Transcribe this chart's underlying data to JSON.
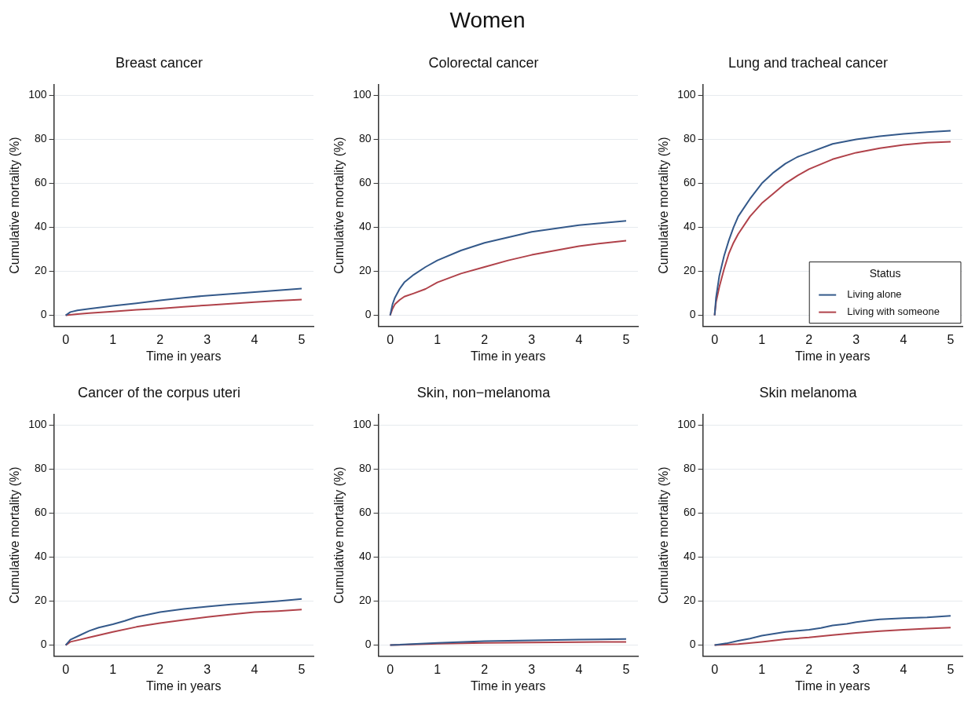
{
  "chart_data": [
    {
      "type": "other",
      "title": "Women"
    },
    {
      "type": "line",
      "title": "Breast cancer",
      "xlabel": "Time in years",
      "ylabel": "Cumulative mortality (%)",
      "xlim": [
        -0.25,
        5.25
      ],
      "xticks": [
        0,
        1,
        2,
        3,
        4,
        5
      ],
      "ylim": [
        -5,
        105
      ],
      "yticks": [
        0,
        20,
        40,
        60,
        80,
        100
      ],
      "grid": "y",
      "legend": false,
      "series": [
        {
          "color": "#34598a",
          "x": [
            0,
            0.1,
            0.25,
            0.5,
            1,
            1.5,
            2,
            2.5,
            3,
            3.5,
            4,
            4.5,
            5
          ],
          "values": [
            0,
            1.5,
            2.3,
            3,
            4.3,
            5.5,
            6.8,
            8,
            9,
            9.8,
            10.6,
            11.4,
            12.2
          ]
        },
        {
          "color": "#b0424a",
          "x": [
            0,
            0.25,
            0.5,
            1,
            1.5,
            2,
            2.5,
            3,
            3.5,
            4,
            4.5,
            5
          ],
          "values": [
            0,
            0.6,
            1,
            1.7,
            2.5,
            3.1,
            3.9,
            4.6,
            5.3,
            6,
            6.6,
            7.2
          ]
        }
      ]
    },
    {
      "type": "line",
      "title": "Colorectal cancer",
      "xlabel": "Time in years",
      "ylabel": "Cumulative mortality (%)",
      "xlim": [
        -0.25,
        5.25
      ],
      "xticks": [
        0,
        1,
        2,
        3,
        4,
        5
      ],
      "ylim": [
        -5,
        105
      ],
      "yticks": [
        0,
        20,
        40,
        60,
        80,
        100
      ],
      "grid": "y",
      "legend": false,
      "series": [
        {
          "color": "#34598a",
          "x": [
            0,
            0.05,
            0.1,
            0.2,
            0.3,
            0.5,
            0.75,
            1,
            1.5,
            2,
            2.5,
            3,
            3.5,
            4,
            4.5,
            5
          ],
          "values": [
            0,
            5,
            8,
            12,
            15,
            18.5,
            22,
            25,
            29.5,
            33,
            35.5,
            38,
            39.5,
            41,
            42,
            43
          ]
        },
        {
          "color": "#b0424a",
          "x": [
            0,
            0.05,
            0.1,
            0.2,
            0.3,
            0.5,
            0.75,
            1,
            1.5,
            2,
            2.5,
            3,
            3.5,
            4,
            4.5,
            5
          ],
          "values": [
            0,
            3,
            5,
            7,
            8.5,
            10,
            12,
            15,
            19,
            22,
            25,
            27.5,
            29.5,
            31.5,
            32.8,
            34
          ]
        }
      ]
    },
    {
      "type": "line",
      "title": "Lung and tracheal cancer",
      "xlabel": "Time in years",
      "ylabel": "Cumulative mortality (%)",
      "xlim": [
        -0.25,
        5.25
      ],
      "xticks": [
        0,
        1,
        2,
        3,
        4,
        5
      ],
      "ylim": [
        -5,
        105
      ],
      "yticks": [
        0,
        20,
        40,
        60,
        80,
        100
      ],
      "grid": "y",
      "legend": "bottom right",
      "legend_title": "Status",
      "series": [
        {
          "name": "Living alone",
          "color": "#34598a",
          "x": [
            0,
            0.03,
            0.1,
            0.2,
            0.3,
            0.4,
            0.5,
            0.75,
            1,
            1.25,
            1.5,
            1.75,
            2,
            2.5,
            3,
            3.5,
            4,
            4.5,
            5
          ],
          "values": [
            0,
            8,
            18,
            27,
            34,
            40,
            45,
            53,
            60,
            65,
            69,
            72,
            74,
            78,
            80,
            81.5,
            82.5,
            83.3,
            84
          ]
        },
        {
          "name": "Living with someone",
          "color": "#b0424a",
          "x": [
            0,
            0.03,
            0.1,
            0.2,
            0.3,
            0.4,
            0.5,
            0.75,
            1,
            1.25,
            1.5,
            1.75,
            2,
            2.5,
            3,
            3.5,
            4,
            4.5,
            5
          ],
          "values": [
            0,
            6,
            13,
            21,
            28,
            33,
            37,
            45,
            51,
            55.5,
            60,
            63.5,
            66.5,
            71,
            74,
            76,
            77.5,
            78.5,
            79
          ]
        }
      ]
    },
    {
      "type": "line",
      "title": "Cancer of the corpus uteri",
      "xlabel": "Time in years",
      "ylabel": "Cumulative mortality (%)",
      "xlim": [
        -0.25,
        5.25
      ],
      "xticks": [
        0,
        1,
        2,
        3,
        4,
        5
      ],
      "ylim": [
        -5,
        105
      ],
      "yticks": [
        0,
        20,
        40,
        60,
        80,
        100
      ],
      "grid": "y",
      "legend": false,
      "series": [
        {
          "color": "#34598a",
          "x": [
            0,
            0.1,
            0.3,
            0.5,
            0.7,
            1,
            1.25,
            1.5,
            2,
            2.5,
            3,
            3.5,
            4,
            4.5,
            5
          ],
          "values": [
            0,
            2.5,
            4.5,
            6.5,
            8,
            9.5,
            11,
            12.8,
            15,
            16.5,
            17.5,
            18.5,
            19.2,
            20,
            21
          ]
        },
        {
          "color": "#b0424a",
          "x": [
            0,
            0.1,
            0.3,
            0.5,
            0.75,
            1,
            1.5,
            2,
            2.5,
            3,
            3.5,
            4,
            4.5,
            5
          ],
          "values": [
            0,
            1.5,
            2.5,
            3.5,
            4.8,
            6,
            8.3,
            10,
            11.5,
            12.8,
            14,
            15,
            15.5,
            16.2
          ]
        }
      ]
    },
    {
      "type": "line",
      "title": "Skin, non−melanoma",
      "xlabel": "Time in years",
      "ylabel": "Cumulative mortality (%)",
      "xlim": [
        -0.25,
        5.25
      ],
      "xticks": [
        0,
        1,
        2,
        3,
        4,
        5
      ],
      "ylim": [
        -5,
        105
      ],
      "yticks": [
        0,
        20,
        40,
        60,
        80,
        100
      ],
      "grid": "y",
      "legend": false,
      "series": [
        {
          "color": "#34598a",
          "x": [
            0,
            1,
            2,
            3,
            4,
            5
          ],
          "values": [
            0,
            1,
            1.8,
            2.2,
            2.5,
            2.8
          ]
        },
        {
          "color": "#b0424a",
          "x": [
            0,
            1,
            2,
            3,
            4,
            5
          ],
          "values": [
            0,
            0.7,
            1,
            1.2,
            1.4,
            1.5
          ]
        }
      ]
    },
    {
      "type": "line",
      "title": "Skin melanoma",
      "xlabel": "Time in years",
      "ylabel": "Cumulative mortality (%)",
      "xlim": [
        -0.25,
        5.25
      ],
      "xticks": [
        0,
        1,
        2,
        3,
        4,
        5
      ],
      "ylim": [
        -5,
        105
      ],
      "yticks": [
        0,
        20,
        40,
        60,
        80,
        100
      ],
      "grid": "y",
      "legend": false,
      "series": [
        {
          "color": "#34598a",
          "x": [
            0,
            0.25,
            0.5,
            0.75,
            1,
            1.5,
            2,
            2.25,
            2.5,
            2.8,
            3,
            3.3,
            3.5,
            4,
            4.5,
            5
          ],
          "values": [
            0,
            0.8,
            2,
            3,
            4.3,
            6,
            7,
            7.8,
            9,
            9.7,
            10.5,
            11.3,
            11.7,
            12.3,
            12.6,
            13.3
          ]
        },
        {
          "color": "#b0424a",
          "x": [
            0,
            0.5,
            1,
            1.5,
            2,
            2.5,
            3,
            3.5,
            4,
            4.5,
            5
          ],
          "values": [
            0,
            0.5,
            1.5,
            2.7,
            3.5,
            4.6,
            5.6,
            6.4,
            7,
            7.5,
            8
          ]
        }
      ]
    }
  ]
}
